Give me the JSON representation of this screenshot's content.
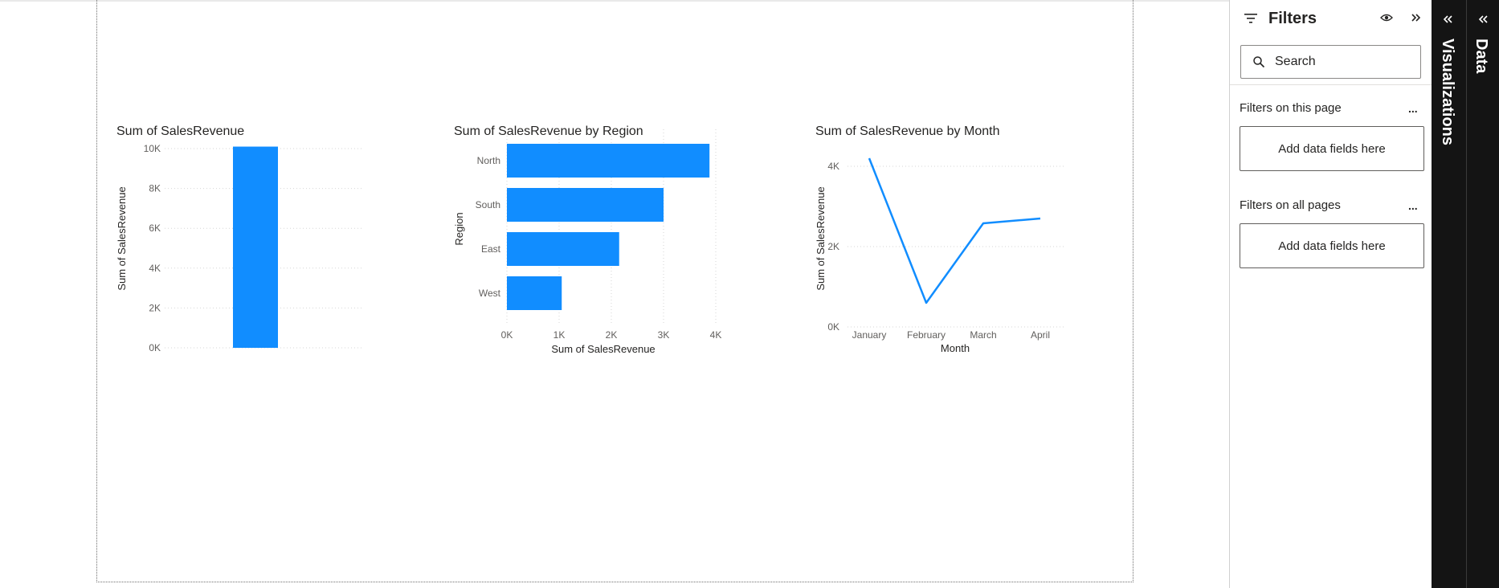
{
  "charts": {
    "total": {
      "title": "Sum of SalesRevenue",
      "y_ticks": [
        "10K",
        "8K",
        "6K",
        "4K",
        "2K",
        "0K"
      ],
      "ylabel": "Sum of SalesRevenue"
    },
    "region": {
      "title": "Sum of SalesRevenue by Region",
      "x_ticks": [
        "0K",
        "1K",
        "2K",
        "3K",
        "4K"
      ],
      "xlabel": "Sum of SalesRevenue",
      "ylabel": "Region"
    },
    "month": {
      "title": "Sum of SalesRevenue by Month",
      "y_ticks": [
        "4K",
        "2K",
        "0K"
      ],
      "xlabel": "Month",
      "ylabel": "Sum of SalesRevenue"
    }
  },
  "chart_data": [
    {
      "type": "bar",
      "title": "Sum of SalesRevenue",
      "categories": [
        ""
      ],
      "values": [
        10100
      ],
      "xlabel": "",
      "ylabel": "Sum of SalesRevenue",
      "ylim": [
        0,
        10000
      ],
      "grid": true,
      "color": "#118dff"
    },
    {
      "type": "bar",
      "orientation": "horizontal",
      "title": "Sum of SalesRevenue by Region",
      "categories": [
        "North",
        "South",
        "East",
        "West"
      ],
      "values": [
        3880,
        3000,
        2150,
        1050
      ],
      "xlabel": "Sum of SalesRevenue",
      "ylabel": "Region",
      "xlim": [
        0,
        4000
      ],
      "grid": true,
      "color": "#118dff"
    },
    {
      "type": "line",
      "title": "Sum of SalesRevenue by Month",
      "categories": [
        "January",
        "February",
        "March",
        "April"
      ],
      "values": [
        4200,
        600,
        2580,
        2700
      ],
      "xlabel": "Month",
      "ylabel": "Sum of SalesRevenue",
      "ylim": [
        0,
        4000
      ],
      "grid": true,
      "color": "#118dff"
    }
  ],
  "filters": {
    "title": "Filters",
    "search_placeholder": "Search",
    "section_page": "Filters on this page",
    "section_all": "Filters on all pages",
    "more": "...",
    "drop_zone_page": "Add data fields here",
    "drop_zone_all": "Add data fields here"
  },
  "panes": {
    "visualizations": "Visualizations",
    "data": "Data"
  },
  "icons": {
    "filter": "funnel-lines-icon",
    "eye": "eye-icon",
    "collapse": "chevron-double-right-icon",
    "expand": "chevron-double-left-icon",
    "search": "search-icon"
  },
  "colors": {
    "accent": "#118dff",
    "pane_dark": "#141414"
  }
}
